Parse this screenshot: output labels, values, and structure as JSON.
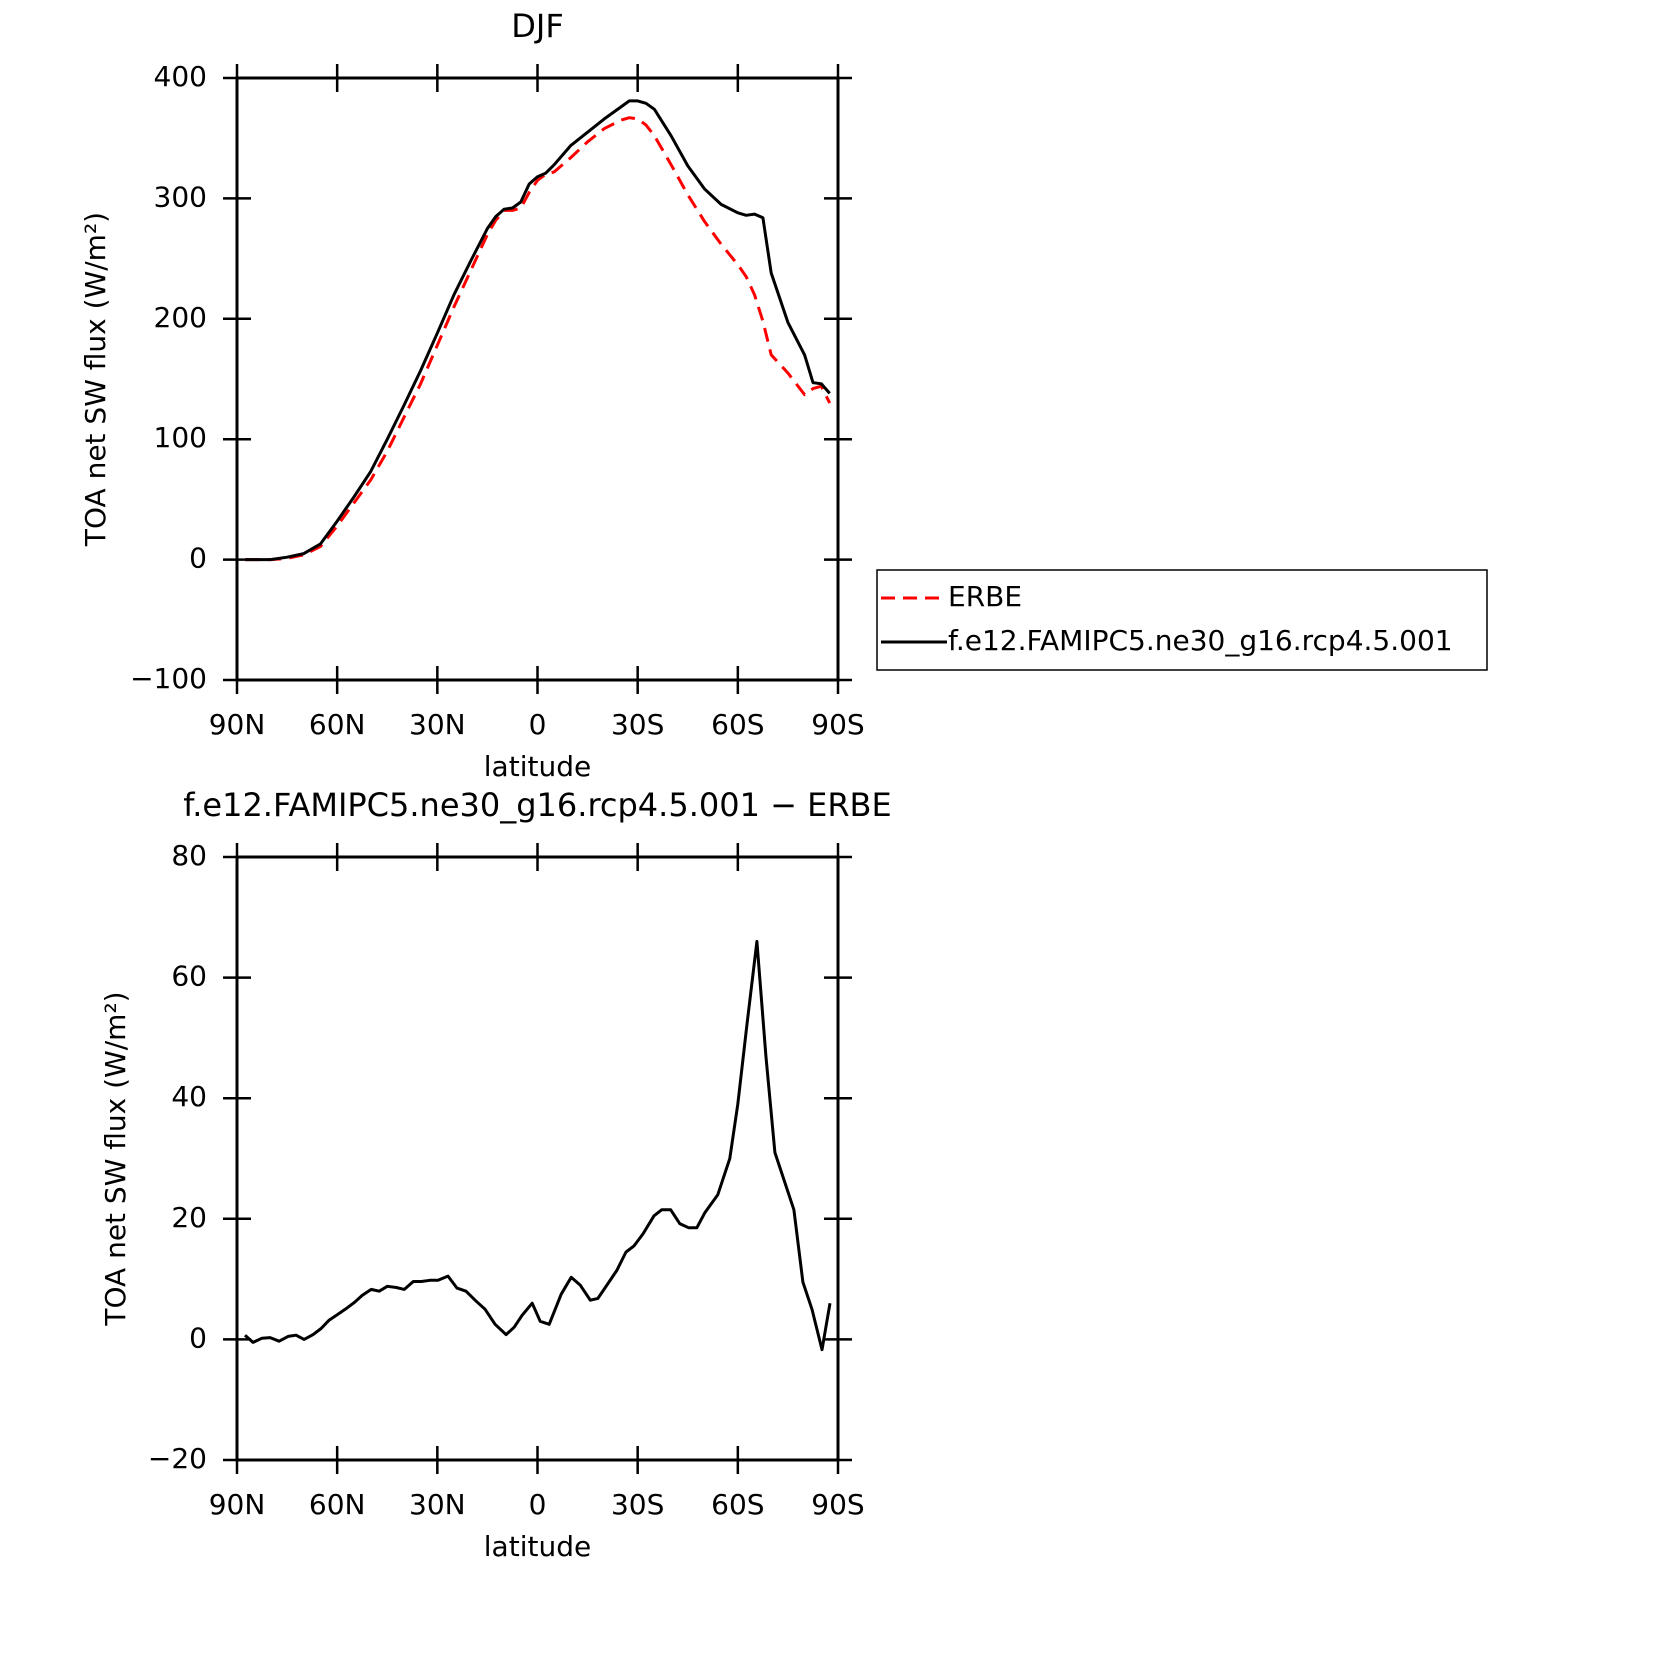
{
  "chart_data": [
    {
      "type": "line",
      "title": "DJF",
      "x_label": "latitude",
      "y_label": "TOA net SW flux (W/m²)",
      "xlim": [
        90,
        -90
      ],
      "xticks": [
        {
          "value": 90,
          "label": "90N"
        },
        {
          "value": 60,
          "label": "60N"
        },
        {
          "value": 30,
          "label": "30N"
        },
        0,
        {
          "value": -30,
          "label": "30S"
        },
        {
          "value": -60,
          "label": "60S"
        },
        {
          "value": -90,
          "label": "90S"
        }
      ],
      "ylim": [
        -100,
        400
      ],
      "yticks": [
        {
          "value": -100,
          "label": "−100"
        },
        0,
        100,
        200,
        300,
        400
      ],
      "legend": "right",
      "x": [
        87.5,
        85,
        80,
        75,
        70,
        65,
        60,
        55,
        50,
        45,
        40,
        35,
        30,
        25,
        20,
        15,
        12.5,
        10,
        7.5,
        5,
        2.5,
        0,
        -2.5,
        -5,
        -10,
        -15,
        -20,
        -25,
        -27.5,
        -30,
        -32.5,
        -35,
        -40,
        -45,
        -50,
        -55,
        -60,
        -62.5,
        -65,
        -67.5,
        -70,
        -75,
        -80,
        -82.5,
        -85,
        -87.5
      ],
      "series": [
        {
          "name": "ERBE",
          "color": "#ff0000",
          "style": "dashed",
          "values": [
            0,
            0,
            0,
            1,
            4,
            11,
            28,
            47,
            66,
            90,
            118,
            146,
            178,
            210,
            240,
            270,
            282,
            290,
            290,
            292,
            305,
            315,
            320,
            322,
            334,
            347,
            358,
            365,
            367,
            366,
            361,
            352,
            328,
            303,
            281,
            262,
            245,
            235,
            220,
            198,
            170,
            155,
            137,
            142,
            144,
            130
          ]
        },
        {
          "name": "f.e12.FAMIPC5.ne30_g16.rcp4.5.001",
          "color": "#000000",
          "style": "solid",
          "values": [
            0,
            0,
            0,
            2,
            5,
            13,
            32,
            52,
            73,
            100,
            128,
            157,
            188,
            220,
            248,
            275,
            285,
            291,
            292,
            297,
            312,
            318,
            321,
            328,
            344,
            355,
            366,
            376,
            381,
            381,
            379,
            374,
            352,
            327,
            308,
            295,
            288,
            286,
            287,
            284,
            238,
            197,
            170,
            147,
            146,
            138
          ]
        }
      ]
    },
    {
      "type": "line",
      "title": "f.e12.FAMIPC5.ne30_g16.rcp4.5.001 − ERBE",
      "x_label": "latitude",
      "y_label": "TOA net SW flux (W/m²)",
      "xlim": [
        90,
        -90
      ],
      "xticks": [
        {
          "value": 90,
          "label": "90N"
        },
        {
          "value": 60,
          "label": "60N"
        },
        {
          "value": 30,
          "label": "30N"
        },
        0,
        {
          "value": -30,
          "label": "30S"
        },
        {
          "value": -60,
          "label": "60S"
        },
        {
          "value": -90,
          "label": "90S"
        }
      ],
      "ylim": [
        -20,
        80
      ],
      "yticks": [
        {
          "value": -20,
          "label": "−20"
        },
        0,
        20,
        40,
        60,
        80
      ],
      "x": [
        87.6,
        85.2,
        82.5,
        80.1,
        77.4,
        74.7,
        72.3,
        69.9,
        67.2,
        64.8,
        62.4,
        60,
        57.6,
        54.9,
        52.5,
        49.8,
        47.4,
        45,
        42.3,
        39.9,
        37.2,
        34.8,
        32.2,
        29.8,
        26.8,
        24.1,
        21.4,
        18.7,
        15.7,
        12.7,
        9.4,
        7,
        4.6,
        1.6,
        -0.8,
        -3.5,
        -7.1,
        -10.1,
        -12.8,
        -15.8,
        -18.1,
        -20.8,
        -23.8,
        -26.5,
        -28.9,
        -31.6,
        -34.9,
        -37.2,
        -39.9,
        -42.6,
        -45.3,
        -47.7,
        -50.1,
        -54,
        -57.6,
        -60,
        -62.7,
        -65.7,
        -68.4,
        -71.1,
        -74.1,
        -76.8,
        -79.5,
        -82.2,
        -85.2,
        -87.6
      ],
      "series": [
        {
          "color": "#000000",
          "style": "solid",
          "values": [
            0.7,
            -0.5,
            0.2,
            0.3,
            -0.3,
            0.5,
            0.7,
            0,
            0.8,
            1.8,
            3.2,
            4.1,
            5,
            6.1,
            7.3,
            8.3,
            8,
            8.8,
            8.6,
            8.3,
            9.6,
            9.6,
            9.8,
            9.8,
            10.5,
            8.5,
            8,
            6.5,
            5,
            2.5,
            0.8,
            2,
            4,
            6,
            3,
            2.5,
            7.5,
            10.3,
            9,
            6.5,
            6.8,
            9,
            11.5,
            14.5,
            15.5,
            17.5,
            20.5,
            21.5,
            21.5,
            19.2,
            18.5,
            18.5,
            21,
            24,
            30,
            39,
            52,
            66,
            47,
            31,
            26,
            21.5,
            9.5,
            5,
            -1.7,
            6
          ]
        }
      ]
    }
  ]
}
